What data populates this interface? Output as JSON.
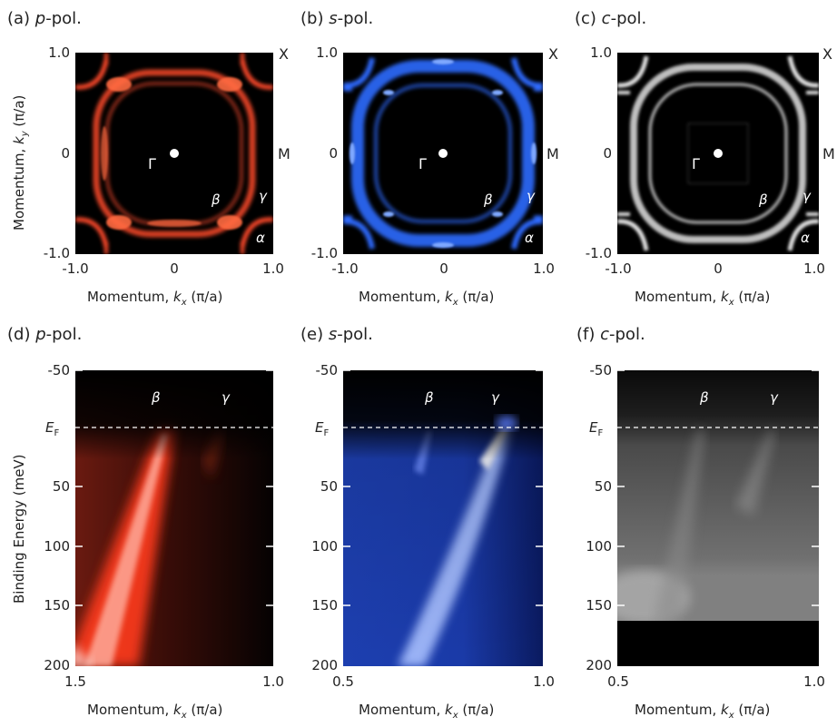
{
  "panels": {
    "a": {
      "title_prefix": "(a) ",
      "title_italic": "p",
      "title_suffix": "-pol.",
      "color": "#ff4a2a"
    },
    "b": {
      "title_prefix": "(b) ",
      "title_italic": "s",
      "title_suffix": "-pol.",
      "color": "#2f6bff"
    },
    "c": {
      "title_prefix": "(c) ",
      "title_italic": "c",
      "title_suffix": "-pol.",
      "color": "#e8e8e8"
    },
    "d": {
      "title_prefix": "(d) ",
      "title_italic": "p",
      "title_suffix": "-pol."
    },
    "e": {
      "title_prefix": "(e) ",
      "title_italic": "s",
      "title_suffix": "-pol."
    },
    "f": {
      "title_prefix": "(f) ",
      "title_italic": "c",
      "title_suffix": "-pol."
    }
  },
  "fs_axes": {
    "y_top": "1.0",
    "y_mid": "0",
    "y_bottom": "-1.0",
    "x_left": "-1.0",
    "x_mid": "0",
    "x_right": "1.0",
    "ylabel_prefix": "Momentum, ",
    "ylabel_k": "k",
    "ylabel_sub": "y",
    "ylabel_suffix": " (π/a)",
    "xlabel_prefix": "Momentum, ",
    "xlabel_k": "k",
    "xlabel_sub": "x",
    "xlabel_suffix": " (π/a)"
  },
  "fs_labels": {
    "X": "X",
    "M": "M",
    "Gamma": "Γ",
    "beta": "β",
    "gamma": "γ",
    "alpha": "α"
  },
  "band_axes": {
    "y_ticks": [
      "-50",
      "50",
      "100",
      "150",
      "200"
    ],
    "ef_label": "E",
    "ef_sub": "F",
    "ylabel": "Binding Energy (meV)",
    "d_x_left": "1.5",
    "d_x_right": "1.0",
    "ef_x_left": "0.5",
    "ef_x_right": "1.0",
    "xlabel_prefix": "Momentum, ",
    "xlabel_k": "k",
    "xlabel_sub": "x",
    "xlabel_suffix": " (π/a)"
  },
  "band_labels": {
    "beta": "β",
    "gamma": "γ"
  }
}
